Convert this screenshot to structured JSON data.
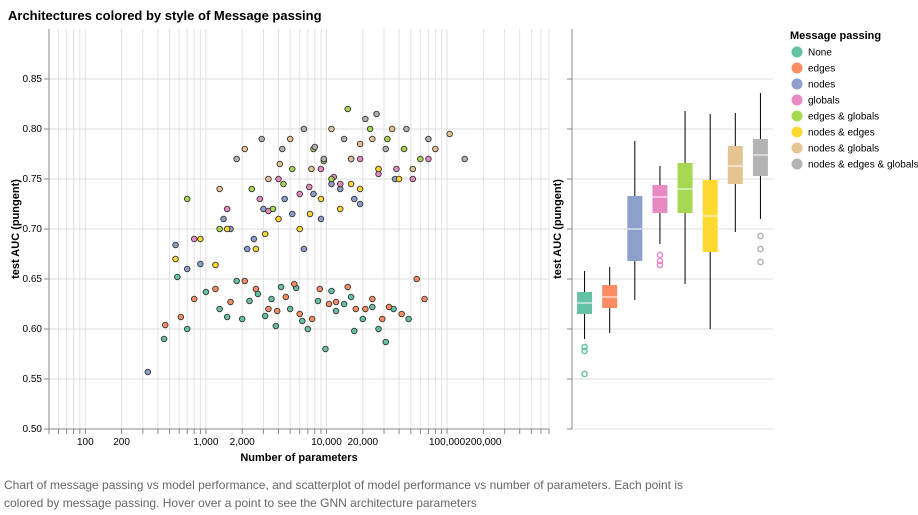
{
  "chart_title": "Architectures colored by style of Message passing",
  "caption": "Chart of message passing vs model performance, and scatterplot of model performance vs number of parameters. Each point is colored by message passing. Hover over a point to see the GNN architecture parameters",
  "legend_title": "Message passing",
  "colors": {
    "None": "#66c2a5",
    "edges": "#fc8d62",
    "nodes": "#8da0cb",
    "globals": "#e78ac3",
    "edges & globals": "#a6d854",
    "nodes & edges": "#ffd92f",
    "nodes & globals": "#e5c494",
    "nodes & edges & globals": "#b3b3b3"
  },
  "chart_data": [
    {
      "type": "scatter",
      "xlabel": "Number of parameters",
      "ylabel": "test AUC (pungent)",
      "x_scale": "log",
      "xlim": [
        50,
        700000
      ],
      "ylim": [
        0.5,
        0.9
      ],
      "x_ticks": [
        100,
        200,
        1000,
        2000,
        10000,
        20000,
        100000,
        200000
      ],
      "x_tick_labels": [
        "100",
        "200",
        "1,000",
        "2,000",
        "10,000",
        "20,000",
        "100,000",
        "200,000"
      ],
      "y_ticks": [
        0.5,
        0.55,
        0.6,
        0.65,
        0.7,
        0.75,
        0.8,
        0.85
      ],
      "y_tick_labels": [
        "0.50",
        "0.55",
        "0.60",
        "0.65",
        "0.70",
        "0.75",
        "0.80",
        "0.85"
      ],
      "grid": true,
      "series": [
        {
          "name": "None",
          "x": [
            450,
            700,
            1300,
            2000,
            2700,
            3500,
            5000,
            7000,
            9800,
            14000,
            20000,
            27000,
            36000,
            48000,
            580,
            1000,
            1800,
            3100,
            4200,
            6300,
            8500,
            12000,
            17000,
            24000,
            31000,
            2300,
            3800,
            11000,
            1500,
            5600,
            16000
          ],
          "y": [
            0.59,
            0.6,
            0.62,
            0.61,
            0.635,
            0.63,
            0.62,
            0.6,
            0.58,
            0.625,
            0.61,
            0.6,
            0.62,
            0.61,
            0.652,
            0.637,
            0.648,
            0.613,
            0.642,
            0.608,
            0.628,
            0.618,
            0.598,
            0.622,
            0.587,
            0.628,
            0.603,
            0.638,
            0.612,
            0.641,
            0.632
          ]
        },
        {
          "name": "edges",
          "x": [
            460,
            800,
            1600,
            2600,
            3300,
            4600,
            6000,
            8800,
            12000,
            17500,
            24000,
            33000,
            42000,
            56000,
            620,
            1200,
            2100,
            3900,
            5400,
            7600,
            10500,
            15000,
            21000,
            29000,
            65000
          ],
          "y": [
            0.604,
            0.63,
            0.627,
            0.64,
            0.62,
            0.632,
            0.615,
            0.64,
            0.627,
            0.62,
            0.63,
            0.622,
            0.615,
            0.65,
            0.612,
            0.64,
            0.648,
            0.618,
            0.645,
            0.61,
            0.625,
            0.642,
            0.62,
            0.61,
            0.63
          ]
        },
        {
          "name": "nodes",
          "x": [
            330,
            560,
            900,
            1400,
            2200,
            3000,
            4500,
            6500,
            9000,
            13000,
            19000,
            27000,
            37000,
            700,
            1600,
            2500,
            5200,
            7800,
            11000,
            17000
          ],
          "y": [
            0.557,
            0.684,
            0.665,
            0.71,
            0.68,
            0.72,
            0.73,
            0.68,
            0.71,
            0.74,
            0.725,
            0.76,
            0.75,
            0.66,
            0.7,
            0.69,
            0.715,
            0.735,
            0.745,
            0.73
          ]
        },
        {
          "name": "globals",
          "x": [
            800,
            1500,
            2800,
            4000,
            6000,
            9000,
            13000,
            19000,
            27000,
            38000,
            52000,
            70000,
            3300,
            7200,
            11500
          ],
          "y": [
            0.69,
            0.72,
            0.73,
            0.75,
            0.735,
            0.76,
            0.745,
            0.77,
            0.755,
            0.76,
            0.75,
            0.77,
            0.718,
            0.742,
            0.752
          ]
        },
        {
          "name": "edges & globals",
          "x": [
            700,
            1300,
            2400,
            3600,
            5200,
            7800,
            11000,
            16000,
            23000,
            32000,
            44000,
            60000,
            15000,
            4400,
            9500
          ],
          "y": [
            0.73,
            0.7,
            0.74,
            0.72,
            0.76,
            0.78,
            0.75,
            0.77,
            0.8,
            0.79,
            0.78,
            0.77,
            0.82,
            0.745,
            0.768
          ]
        },
        {
          "name": "nodes & edges",
          "x": [
            560,
            900,
            1500,
            2600,
            4000,
            6000,
            9000,
            13000,
            19000,
            27000,
            40000,
            1200,
            3100,
            7300,
            16000
          ],
          "y": [
            0.67,
            0.69,
            0.7,
            0.68,
            0.71,
            0.7,
            0.73,
            0.72,
            0.74,
            0.76,
            0.75,
            0.664,
            0.695,
            0.715,
            0.745
          ]
        },
        {
          "name": "nodes & globals",
          "x": [
            1300,
            2100,
            3300,
            5000,
            7500,
            11000,
            16000,
            24000,
            35000,
            52000,
            80000,
            105000,
            4100,
            19000
          ],
          "y": [
            0.74,
            0.78,
            0.75,
            0.79,
            0.76,
            0.8,
            0.77,
            0.79,
            0.8,
            0.76,
            0.78,
            0.795,
            0.765,
            0.785
          ]
        },
        {
          "name": "nodes & edges & globals",
          "x": [
            1800,
            2900,
            4300,
            6500,
            9500,
            14000,
            21000,
            31000,
            46000,
            70000,
            140000,
            26000,
            8000
          ],
          "y": [
            0.77,
            0.79,
            0.78,
            0.8,
            0.77,
            0.79,
            0.81,
            0.78,
            0.8,
            0.79,
            0.77,
            0.815,
            0.782
          ]
        }
      ]
    },
    {
      "type": "box",
      "ylabel": "test AUC (pungent)",
      "ylim": [
        0.5,
        0.9
      ],
      "categories": [
        "None",
        "edges",
        "nodes",
        "globals",
        "edges & globals",
        "nodes & edges",
        "nodes & globals",
        "nodes & edges & globals"
      ],
      "boxes": [
        {
          "category": "None",
          "min": 0.59,
          "q1": 0.615,
          "median": 0.626,
          "q3": 0.637,
          "max": 0.658,
          "outliers": [
            0.582,
            0.578,
            0.555
          ]
        },
        {
          "category": "edges",
          "min": 0.596,
          "q1": 0.621,
          "median": 0.632,
          "q3": 0.644,
          "max": 0.662
        },
        {
          "category": "nodes",
          "min": 0.629,
          "q1": 0.668,
          "median": 0.7,
          "q3": 0.733,
          "max": 0.788
        },
        {
          "category": "globals",
          "min": 0.685,
          "q1": 0.716,
          "median": 0.732,
          "q3": 0.744,
          "max": 0.763,
          "outliers": [
            0.674,
            0.668,
            0.664
          ]
        },
        {
          "category": "edges & globals",
          "min": 0.645,
          "q1": 0.716,
          "median": 0.74,
          "q3": 0.766,
          "max": 0.818
        },
        {
          "category": "nodes & edges",
          "min": 0.6,
          "q1": 0.677,
          "median": 0.713,
          "q3": 0.749,
          "max": 0.815
        },
        {
          "category": "nodes & globals",
          "min": 0.697,
          "q1": 0.745,
          "median": 0.763,
          "q3": 0.783,
          "max": 0.816
        },
        {
          "category": "nodes & edges & globals",
          "min": 0.71,
          "q1": 0.753,
          "median": 0.774,
          "q3": 0.79,
          "max": 0.836,
          "outliers": [
            0.693,
            0.68,
            0.667
          ]
        }
      ],
      "legend": "right"
    }
  ]
}
